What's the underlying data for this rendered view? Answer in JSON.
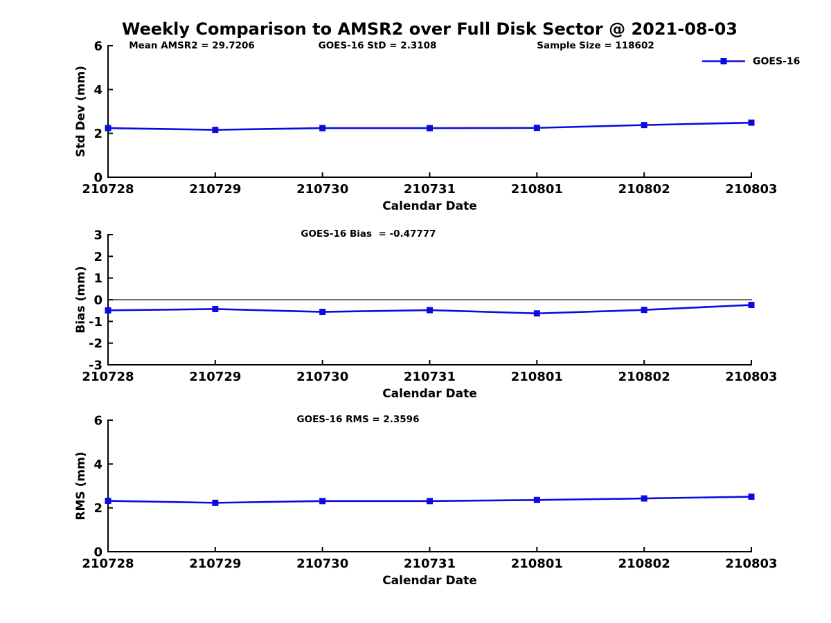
{
  "figure": {
    "title": "Weekly Comparison to AMSR2 over Full Disk Sector @ 2021-08-03"
  },
  "legend": {
    "label": "GOES-16"
  },
  "colors": {
    "series": "#0b0be0",
    "axis": "#000000",
    "zero_line": "#1a1a1a",
    "text": "#000000",
    "background": "#ffffff"
  },
  "chart_data": [
    {
      "id": "stddev",
      "type": "line",
      "title": "Weekly Comparison to AMSR2 over Full Disk Sector @ 2021-08-03",
      "ylabel": "Std Dev (mm)",
      "xlabel": "Calendar Date",
      "categories": [
        "210728",
        "210729",
        "210730",
        "210731",
        "210801",
        "210802",
        "210803"
      ],
      "series": [
        {
          "name": "GOES-16",
          "values": [
            2.24,
            2.16,
            2.24,
            2.24,
            2.25,
            2.38,
            2.49
          ]
        }
      ],
      "ylim": [
        0,
        6
      ],
      "yticks": [
        0,
        2,
        4,
        6
      ],
      "annotations": [
        "Mean AMSR2 = 29.7206",
        "GOES-16 StD = 2.3108",
        "Sample Size = 118602"
      ],
      "legend": {
        "entries": [
          "GOES-16"
        ],
        "position": "upper-right"
      },
      "grid": false,
      "marker": "square"
    },
    {
      "id": "bias",
      "type": "line",
      "ylabel": "Bias (mm)",
      "xlabel": "Calendar Date",
      "categories": [
        "210728",
        "210729",
        "210730",
        "210731",
        "210801",
        "210802",
        "210803"
      ],
      "series": [
        {
          "name": "GOES-16",
          "values": [
            -0.49,
            -0.43,
            -0.56,
            -0.48,
            -0.63,
            -0.47,
            -0.24
          ]
        }
      ],
      "ylim": [
        -3,
        3
      ],
      "yticks": [
        -3,
        -2,
        -1,
        0,
        1,
        2,
        3
      ],
      "annotations": [
        "GOES-16 Bias  = -0.47777"
      ],
      "zero_line": true,
      "grid": false,
      "marker": "square"
    },
    {
      "id": "rms",
      "type": "line",
      "ylabel": "RMS (mm)",
      "xlabel": "Calendar Date",
      "categories": [
        "210728",
        "210729",
        "210730",
        "210731",
        "210801",
        "210802",
        "210803"
      ],
      "series": [
        {
          "name": "GOES-16",
          "values": [
            2.32,
            2.23,
            2.31,
            2.31,
            2.36,
            2.43,
            2.51
          ]
        }
      ],
      "ylim": [
        0,
        6
      ],
      "yticks": [
        0,
        2,
        4,
        6
      ],
      "annotations": [
        "GOES-16 RMS = 2.3596"
      ],
      "grid": false,
      "marker": "square"
    }
  ]
}
